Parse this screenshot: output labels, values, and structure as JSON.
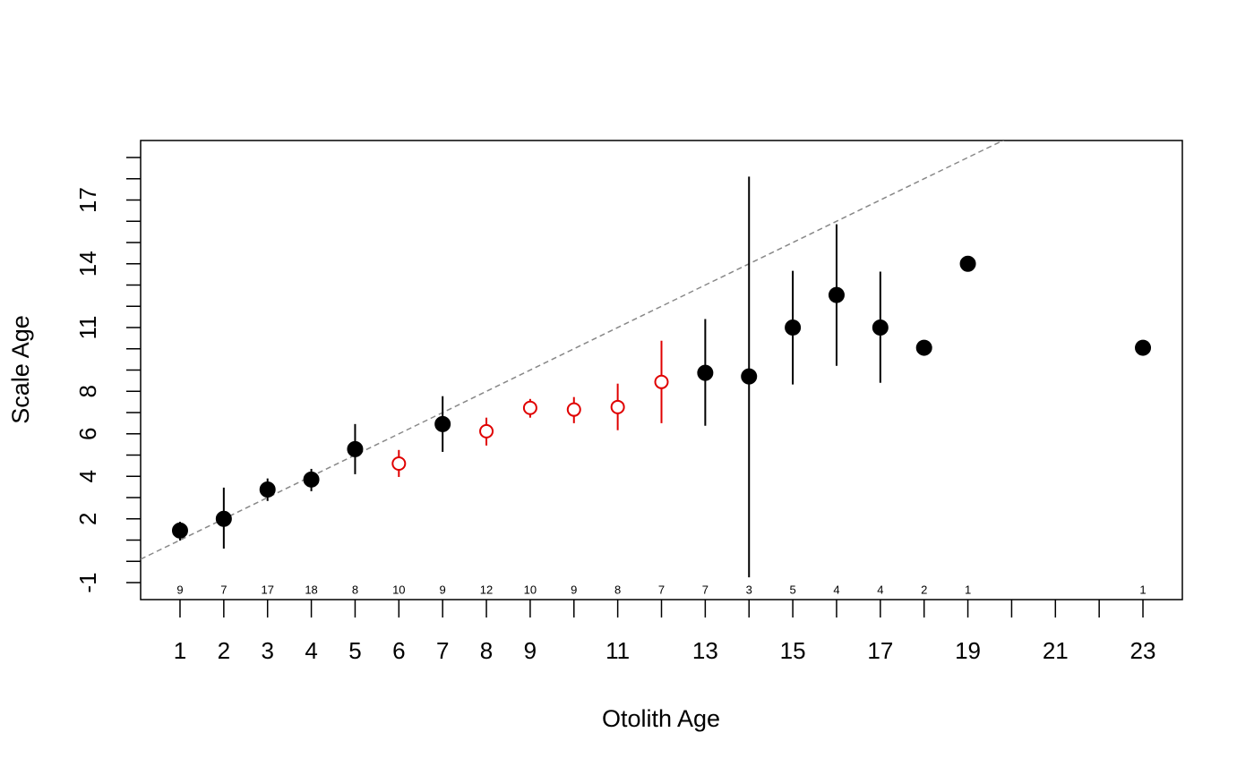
{
  "chart_data": {
    "type": "agebias",
    "x_label": "Otolith Age",
    "y_label": "Scale Age",
    "x": [
      1,
      2,
      3,
      4,
      5,
      6,
      7,
      8,
      9,
      10,
      11,
      12,
      13,
      14,
      15,
      16,
      17,
      18,
      19,
      23
    ],
    "values": [
      1.45,
      2.0,
      3.38,
      3.85,
      5.28,
      4.6,
      6.46,
      6.12,
      7.22,
      7.14,
      7.26,
      8.44,
      8.87,
      8.7,
      11.0,
      12.53,
      11.0,
      10.05,
      14.0,
      10.05
    ],
    "upper": [
      1.86,
      3.47,
      3.9,
      4.35,
      6.46,
      5.24,
      7.77,
      6.76,
      7.64,
      7.73,
      8.36,
      10.38,
      11.4,
      18.1,
      13.67,
      15.86,
      13.63,
      null,
      null,
      null
    ],
    "lower": [
      0.98,
      0.6,
      2.84,
      3.3,
      4.1,
      3.97,
      5.15,
      5.45,
      6.76,
      6.5,
      6.17,
      6.5,
      6.38,
      -0.75,
      8.32,
      9.2,
      8.4,
      null,
      null,
      null
    ],
    "n": [
      9,
      7,
      17,
      18,
      8,
      10,
      9,
      12,
      10,
      9,
      8,
      7,
      7,
      3,
      5,
      4,
      4,
      2,
      1,
      1
    ],
    "colors": [
      "#000000",
      "#000000",
      "#000000",
      "#000000",
      "#000000",
      "#e00000",
      "#000000",
      "#e00000",
      "#e00000",
      "#e00000",
      "#e00000",
      "#e00000",
      "#000000",
      "#000000",
      "#000000",
      "#000000",
      "#000000",
      "#000000",
      "#000000",
      "#000000"
    ],
    "open": [
      false,
      false,
      false,
      false,
      false,
      true,
      false,
      true,
      true,
      true,
      true,
      true,
      false,
      false,
      false,
      false,
      false,
      false,
      false,
      false
    ],
    "reference_line": {
      "slope": 1,
      "intercept": 0,
      "color": "#888888"
    },
    "xlim": [
      0.1,
      23.9
    ],
    "ylim": [
      -1.8,
      19.8
    ],
    "xticks": [
      1,
      2,
      3,
      4,
      5,
      6,
      7,
      8,
      9,
      11,
      13,
      15,
      17,
      19,
      21,
      23
    ],
    "xminor_ticks": [
      10,
      12,
      14,
      16,
      18,
      20,
      22
    ],
    "yticks": [
      -1,
      2,
      4,
      6,
      8,
      11,
      14,
      17
    ],
    "yminor_ticks": [
      0,
      1,
      3,
      5,
      7,
      9,
      10,
      12,
      13,
      15,
      16,
      18,
      19
    ]
  }
}
